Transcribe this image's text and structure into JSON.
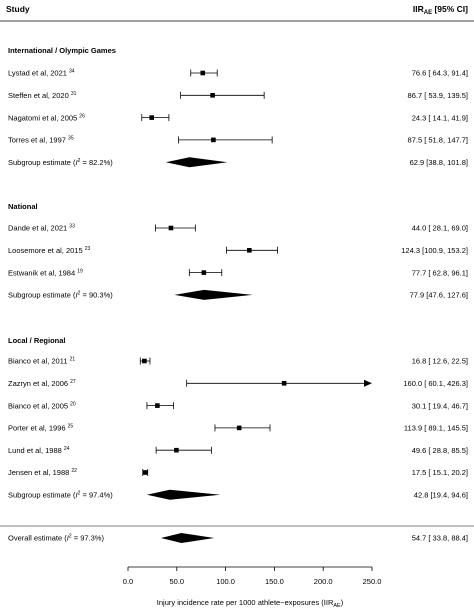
{
  "chart_data": {
    "type": "forest",
    "header_left": "Study",
    "header_right_main": "IIR",
    "header_right_sub": "AE",
    "header_right_tail": " [95% CI]",
    "xlabel_main": "Injury incidence rate per 1000 athlete−exposures (IIR",
    "xlabel_sub": "AE",
    "xlabel_tail": ")",
    "xlim": [
      0,
      250
    ],
    "ticks": [
      "0.0",
      "50.0",
      "100.0",
      "150.0",
      "200.0",
      "250.0"
    ],
    "tick_values": [
      0,
      50,
      100,
      150,
      200,
      250
    ],
    "colors": {
      "ink": "#000000",
      "line": "#000000",
      "background": "#ffffff"
    },
    "groups": [
      {
        "title": "International / Olympic Games",
        "studies": [
          {
            "label": "Lystad et al, 2021",
            "ref": "34",
            "est": 76.6,
            "lo": 64.3,
            "hi": 91.4,
            "ci_text": "76.6 [ 64.3,  91.4]"
          },
          {
            "label": "Steffen et al, 2020",
            "ref": "31",
            "est": 86.7,
            "lo": 53.9,
            "hi": 139.5,
            "ci_text": "86.7 [ 53.9, 139.5]"
          },
          {
            "label": "Nagatomi et al, 2005",
            "ref": "26",
            "est": 24.3,
            "lo": 14.1,
            "hi": 41.9,
            "ci_text": "24.3 [ 14.1,  41.9]"
          },
          {
            "label": "Torres et al, 1997",
            "ref": "35",
            "est": 87.5,
            "lo": 51.8,
            "hi": 147.7,
            "ci_text": "87.5 [ 51.8, 147.7]"
          }
        ],
        "subgroup": {
          "label_pre": "Subgroup estimate (",
          "label_i2": "I",
          "label_post": " = 82.2%)",
          "est": 62.9,
          "lo": 38.8,
          "hi": 101.8,
          "ci_text": "62.9 [38.8, 101.8]"
        }
      },
      {
        "title": "National",
        "studies": [
          {
            "label": "Dande et al, 2021",
            "ref": "33",
            "est": 44.0,
            "lo": 28.1,
            "hi": 69.0,
            "ci_text": "44.0 [ 28.1,  69.0]"
          },
          {
            "label": "Loosemore et al, 2015",
            "ref": "23",
            "est": 124.3,
            "lo": 100.9,
            "hi": 153.2,
            "ci_text": "124.3 [100.9, 153.2]"
          },
          {
            "label": "Estwanik et al, 1984",
            "ref": "19",
            "est": 77.7,
            "lo": 62.8,
            "hi": 96.1,
            "ci_text": "77.7 [ 62.8,  96.1]"
          }
        ],
        "subgroup": {
          "label_pre": "Subgroup estimate (",
          "label_i2": "I",
          "label_post": " = 90.3%)",
          "est": 77.9,
          "lo": 47.6,
          "hi": 127.6,
          "ci_text": "77.9 [47.6, 127.6]"
        }
      },
      {
        "title": "Local / Regional",
        "studies": [
          {
            "label": "Bianco et al, 2011",
            "ref": "21",
            "est": 16.8,
            "lo": 12.6,
            "hi": 22.5,
            "ci_text": "16.8 [ 12.6,  22.5]"
          },
          {
            "label": "Zazryn et al, 2006",
            "ref": "27",
            "est": 160.0,
            "lo": 60.1,
            "hi": 426.3,
            "ci_text": "160.0 [ 60.1, 426.3]"
          },
          {
            "label": "Bianco et al, 2005",
            "ref": "20",
            "est": 30.1,
            "lo": 19.4,
            "hi": 46.7,
            "ci_text": "30.1 [ 19.4,  46.7]"
          },
          {
            "label": "Porter et al, 1996",
            "ref": "25",
            "est": 113.9,
            "lo": 89.1,
            "hi": 145.5,
            "ci_text": "113.9 [ 89.1, 145.5]"
          },
          {
            "label": "Lund et al, 1988",
            "ref": "24",
            "est": 49.6,
            "lo": 28.8,
            "hi": 85.5,
            "ci_text": "49.6 [ 28.8,  85.5]"
          },
          {
            "label": "Jensen et al, 1988",
            "ref": "22",
            "est": 17.5,
            "lo": 15.1,
            "hi": 20.2,
            "ci_text": "17.5 [ 15.1,  20.2]"
          }
        ],
        "subgroup": {
          "label_pre": "Subgroup estimate (",
          "label_i2": "I",
          "label_post": " = 97.4%)",
          "est": 42.8,
          "lo": 19.4,
          "hi": 94.6,
          "ci_text": "42.8 [19.4, 94.6]"
        }
      }
    ],
    "overall": {
      "label_pre": "Overall estimate (",
      "label_i2": "I",
      "label_post": " = 97.3%)",
      "est": 54.7,
      "lo": 33.8,
      "hi": 88.4,
      "ci_text": "54.7 [ 33.8,  88.4]"
    }
  }
}
